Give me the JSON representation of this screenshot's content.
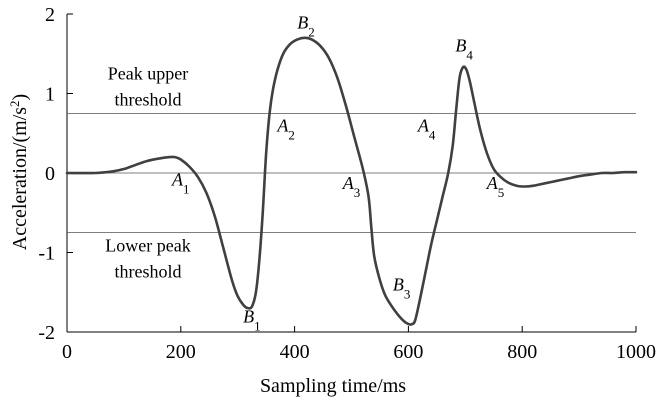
{
  "chart_data": {
    "type": "line",
    "title": "",
    "xlabel": "Sampling time/ms",
    "ylabel": "Acceleration/(m/s",
    "ylabel_sup": "2",
    "ylabel_close": ")",
    "xlim": [
      0,
      1000
    ],
    "ylim": [
      -2,
      2
    ],
    "x_ticks": [
      0,
      200,
      400,
      600,
      800,
      1000
    ],
    "x_tick_labels": [
      "0",
      "200",
      "400",
      "600",
      "800",
      "1000"
    ],
    "y_ticks": [
      -2,
      -1,
      0,
      1,
      2
    ],
    "y_tick_labels": [
      "-2",
      "-1",
      "0",
      "1",
      "2"
    ],
    "grid": false,
    "thresholds": [
      {
        "value": 0.75,
        "label_lines": [
          "Peak upper",
          "threshold"
        ]
      },
      {
        "value": 0,
        "label_lines": []
      },
      {
        "value": -0.75,
        "label_lines": [
          "Lower peak",
          "threshold"
        ]
      }
    ],
    "series": [
      {
        "color": "#404040",
        "x": [
          0,
          50,
          80,
          100,
          120,
          140,
          160,
          180,
          190,
          200,
          215,
          230,
          245,
          260,
          275,
          290,
          300,
          310,
          318,
          325,
          332,
          338,
          344,
          350,
          356,
          362,
          370,
          380,
          392,
          405,
          418,
          430,
          445,
          460,
          475,
          490,
          505,
          520,
          530,
          535,
          540,
          550,
          560,
          575,
          590,
          600,
          607,
          612,
          620,
          630,
          640,
          650,
          660,
          670,
          678,
          684,
          690,
          696,
          702,
          708,
          716,
          726,
          738,
          750,
          762,
          775,
          790,
          805,
          820,
          840,
          860,
          880,
          900,
          920,
          940,
          960,
          980,
          1000
        ],
        "y": [
          0,
          0.0,
          0.02,
          0.05,
          0.1,
          0.15,
          0.18,
          0.2,
          0.2,
          0.17,
          0.08,
          -0.05,
          -0.25,
          -0.55,
          -0.95,
          -1.35,
          -1.55,
          -1.66,
          -1.7,
          -1.68,
          -1.5,
          -1.1,
          -0.5,
          0.25,
          0.75,
          1.05,
          1.3,
          1.5,
          1.62,
          1.68,
          1.7,
          1.68,
          1.6,
          1.45,
          1.2,
          0.85,
          0.45,
          0.05,
          -0.3,
          -0.7,
          -1.05,
          -1.35,
          -1.55,
          -1.72,
          -1.85,
          -1.9,
          -1.9,
          -1.85,
          -1.6,
          -1.25,
          -0.9,
          -0.6,
          -0.3,
          0.0,
          0.35,
          0.8,
          1.2,
          1.33,
          1.3,
          1.15,
          0.88,
          0.55,
          0.25,
          0.05,
          -0.05,
          -0.12,
          -0.16,
          -0.17,
          -0.16,
          -0.13,
          -0.1,
          -0.07,
          -0.04,
          -0.02,
          0.0,
          0.0,
          0.01,
          0.01
        ]
      }
    ],
    "annotations": [
      {
        "letter": "A",
        "sub": "1",
        "x": 200,
        "y": -0.16
      },
      {
        "letter": "A",
        "sub": "2",
        "x": 385,
        "y": 0.52
      },
      {
        "letter": "A",
        "sub": "3",
        "x": 500,
        "y": -0.2
      },
      {
        "letter": "A",
        "sub": "4",
        "x": 632,
        "y": 0.52
      },
      {
        "letter": "A",
        "sub": "5",
        "x": 753,
        "y": -0.2
      },
      {
        "letter": "B",
        "sub": "1",
        "x": 325,
        "y": -1.88
      },
      {
        "letter": "B",
        "sub": "2",
        "x": 420,
        "y": 1.82
      },
      {
        "letter": "B",
        "sub": "3",
        "x": 588,
        "y": -1.48
      },
      {
        "letter": "B",
        "sub": "4",
        "x": 698,
        "y": 1.53
      }
    ]
  }
}
